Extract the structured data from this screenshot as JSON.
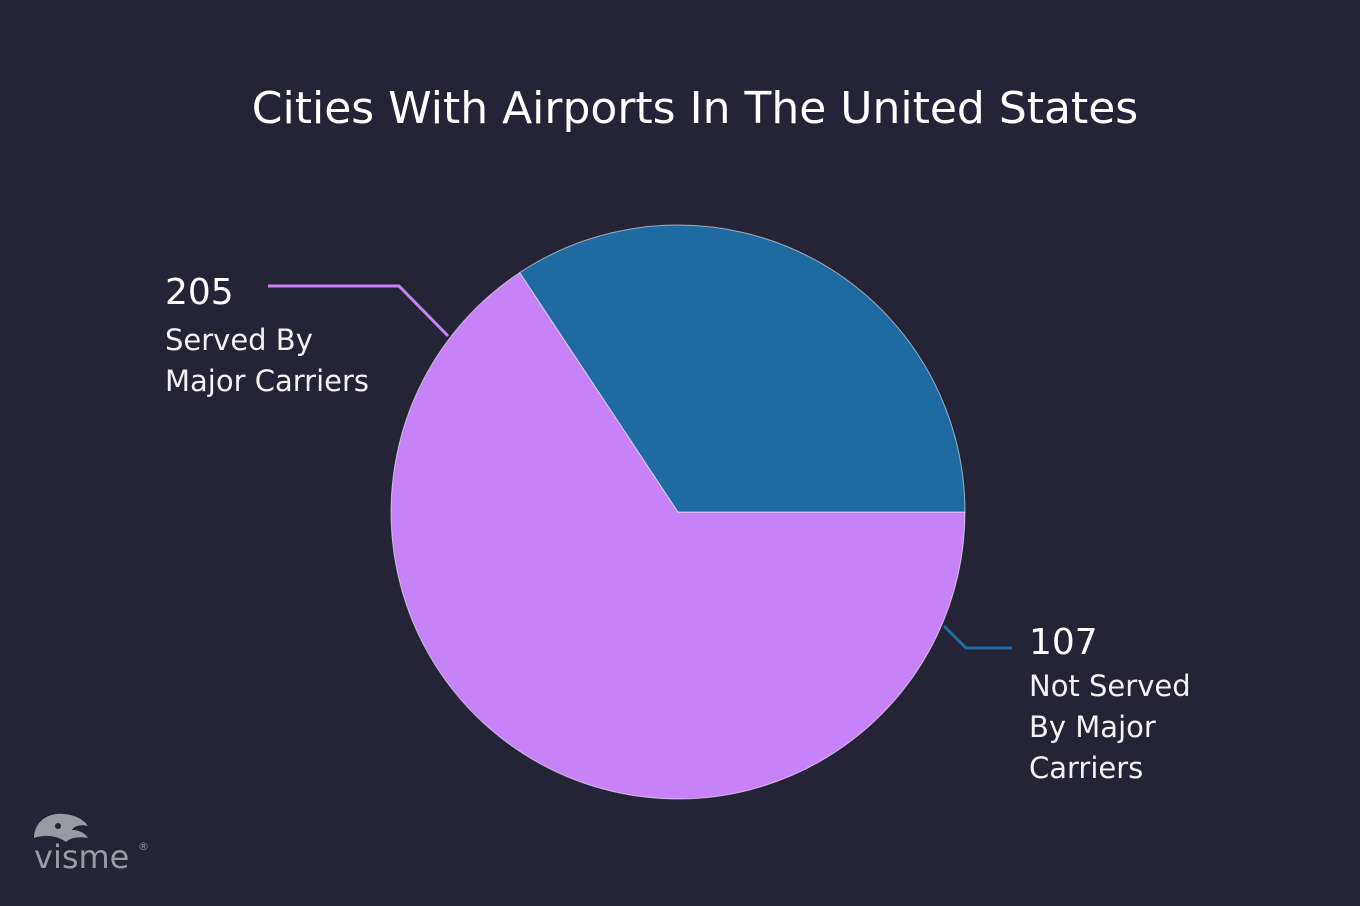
{
  "chart_data": {
    "type": "pie",
    "title": "Cities With Airports In The United States",
    "slices": [
      {
        "value": 205,
        "value_label": "205",
        "label_lines": [
          "Served By",
          "Major Carriers"
        ],
        "color": "#c882f8"
      },
      {
        "value": 107,
        "value_label": "107",
        "label_lines": [
          "Not Served",
          "By Major",
          "Carriers"
        ],
        "color": "#1f6aa0"
      }
    ],
    "start_angle_deg": 0,
    "direction": "clockwise"
  },
  "branding": {
    "logo_text": "visme",
    "registered_mark": "®",
    "icon": "visme-chameleon-icon"
  },
  "colors": {
    "background": "#252436",
    "text": "#ffffff"
  }
}
